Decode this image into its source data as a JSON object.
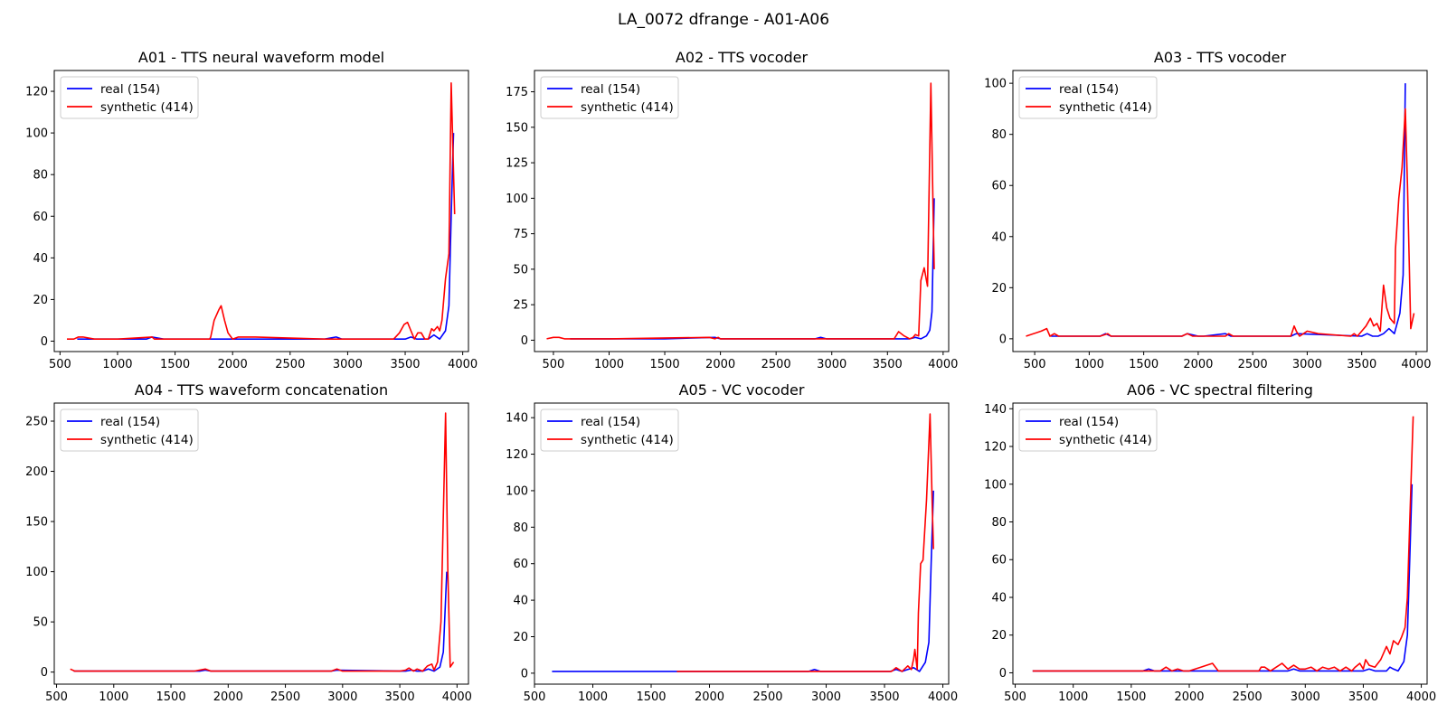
{
  "figure": {
    "suptitle": "LA_0072 dfrange - A01-A06",
    "colors": {
      "real": "#0000ff",
      "synthetic": "#ff0000"
    }
  },
  "chart_data": [
    {
      "type": "line",
      "title": "A01 - TTS neural waveform model",
      "xlim": [
        450,
        4050
      ],
      "ylim": [
        -5,
        130
      ],
      "xticks": [
        500,
        1000,
        1500,
        2000,
        2500,
        3000,
        3500,
        4000
      ],
      "yticks": [
        0,
        20,
        40,
        60,
        80,
        100,
        120
      ],
      "legend": "upper-left",
      "series": [
        {
          "name": "real (154)",
          "color": "#0000ff",
          "x": [
            650,
            1000,
            1250,
            1300,
            1400,
            2000,
            2800,
            2900,
            2950,
            3500,
            3550,
            3600,
            3650,
            3700,
            3750,
            3800,
            3850,
            3880,
            3900,
            3920
          ],
          "y": [
            1,
            1,
            1,
            2,
            1,
            1,
            1,
            2,
            1,
            1,
            2,
            1,
            1,
            1,
            3,
            1,
            5,
            17,
            60,
            100
          ]
        },
        {
          "name": "synthetic (414)",
          "color": "#ff0000",
          "x": [
            560,
            620,
            660,
            700,
            800,
            1000,
            1300,
            1320,
            1400,
            1700,
            1800,
            1810,
            1840,
            1880,
            1900,
            1930,
            1960,
            2000,
            2050,
            2200,
            2800,
            2900,
            3400,
            3450,
            3490,
            3520,
            3550,
            3580,
            3610,
            3640,
            3670,
            3700,
            3730,
            3750,
            3780,
            3800,
            3820,
            3850,
            3880,
            3900,
            3930
          ],
          "y": [
            1,
            1,
            2,
            2,
            1,
            1,
            2,
            1,
            1,
            1,
            1,
            2,
            10,
            15,
            17,
            10,
            4,
            1,
            2,
            2,
            1,
            1,
            1,
            4,
            8,
            9,
            5,
            1,
            4,
            4,
            1,
            1,
            6,
            5,
            7,
            5,
            10,
            30,
            42,
            124,
            61
          ]
        }
      ]
    },
    {
      "type": "line",
      "title": "A02 - TTS vocoder",
      "xlim": [
        330,
        4050
      ],
      "ylim": [
        -8,
        190
      ],
      "xticks": [
        500,
        1000,
        1500,
        2000,
        2500,
        3000,
        3500,
        4000
      ],
      "yticks": [
        0,
        25,
        50,
        75,
        100,
        125,
        150,
        175
      ],
      "legend": "upper-left",
      "series": [
        {
          "name": "real (154)",
          "color": "#0000ff",
          "x": [
            650,
            1000,
            1500,
            1950,
            2000,
            2050,
            2850,
            2900,
            2950,
            3500,
            3600,
            3700,
            3750,
            3800,
            3850,
            3880,
            3900,
            3920
          ],
          "y": [
            1,
            1,
            1,
            2,
            1,
            1,
            1,
            2,
            1,
            1,
            1,
            1,
            2,
            1,
            3,
            7,
            20,
            100
          ]
        },
        {
          "name": "synthetic (414)",
          "color": "#ff0000",
          "x": [
            440,
            500,
            550,
            600,
            650,
            700,
            800,
            1000,
            1900,
            1950,
            1980,
            2000,
            2050,
            2100,
            2800,
            2900,
            3500,
            3560,
            3600,
            3650,
            3700,
            3730,
            3750,
            3780,
            3800,
            3830,
            3860,
            3890,
            3910,
            3920
          ],
          "y": [
            1,
            2,
            2,
            1,
            1,
            1,
            1,
            1,
            2,
            1,
            2,
            1,
            1,
            1,
            1,
            1,
            1,
            1,
            6,
            3,
            1,
            2,
            4,
            3,
            42,
            51,
            38,
            181,
            90,
            50
          ]
        }
      ]
    },
    {
      "type": "line",
      "title": "A03 - TTS vocoder",
      "xlim": [
        300,
        4100
      ],
      "ylim": [
        -5,
        105
      ],
      "xticks": [
        500,
        1000,
        1500,
        2000,
        2500,
        3000,
        3500,
        4000
      ],
      "yticks": [
        0,
        20,
        40,
        60,
        80,
        100
      ],
      "legend": "upper-left",
      "series": [
        {
          "name": "real (154)",
          "color": "#0000ff",
          "x": [
            650,
            1100,
            1150,
            1200,
            1850,
            1900,
            2000,
            2050,
            2250,
            2300,
            2350,
            2850,
            2900,
            3500,
            3550,
            3600,
            3650,
            3700,
            3750,
            3800,
            3850,
            3880,
            3900
          ],
          "y": [
            1,
            1,
            2,
            1,
            1,
            2,
            1,
            1,
            2,
            1,
            1,
            1,
            2,
            1,
            2,
            1,
            1,
            2,
            4,
            2,
            10,
            25,
            100
          ]
        },
        {
          "name": "synthetic (414)",
          "color": "#ff0000",
          "x": [
            420,
            560,
            610,
            640,
            680,
            720,
            900,
            1100,
            1170,
            1200,
            1800,
            1850,
            1900,
            1950,
            2000,
            2050,
            2250,
            2280,
            2320,
            2800,
            2850,
            2880,
            2900,
            2930,
            3000,
            3100,
            3400,
            3430,
            3460,
            3500,
            3540,
            3580,
            3610,
            3640,
            3670,
            3700,
            3730,
            3760,
            3800,
            3810,
            3840,
            3870,
            3900,
            3920,
            3950,
            3980
          ],
          "y": [
            1,
            3,
            4,
            1,
            2,
            1,
            1,
            1,
            2,
            1,
            1,
            1,
            2,
            1,
            1,
            1,
            1,
            2,
            1,
            1,
            1,
            5,
            3,
            1,
            3,
            2,
            1,
            2,
            1,
            3,
            5,
            8,
            5,
            6,
            3,
            21,
            12,
            8,
            6,
            35,
            55,
            67,
            90,
            60,
            4,
            10
          ]
        }
      ]
    },
    {
      "type": "line",
      "title": "A04 - TTS waveform concatenation",
      "xlim": [
        480,
        4100
      ],
      "ylim": [
        -12,
        268
      ],
      "xticks": [
        500,
        1000,
        1500,
        2000,
        2500,
        3000,
        3500,
        4000
      ],
      "yticks": [
        0,
        50,
        100,
        150,
        200,
        250
      ],
      "legend": "upper-left",
      "series": [
        {
          "name": "real (154)",
          "color": "#0000ff",
          "x": [
            650,
            1000,
            1750,
            1800,
            1850,
            2900,
            2950,
            3500,
            3550,
            3600,
            3650,
            3700,
            3750,
            3800,
            3850,
            3880,
            3910
          ],
          "y": [
            1,
            1,
            1,
            2,
            1,
            1,
            2,
            1,
            1,
            2,
            1,
            1,
            3,
            1,
            5,
            20,
            100
          ]
        },
        {
          "name": "synthetic (414)",
          "color": "#ff0000",
          "x": [
            620,
            660,
            700,
            1000,
            1700,
            1800,
            1850,
            2800,
            2900,
            2950,
            3000,
            3500,
            3550,
            3580,
            3620,
            3650,
            3700,
            3740,
            3780,
            3800,
            3830,
            3860,
            3900,
            3920,
            3940,
            3970
          ],
          "y": [
            3,
            1,
            1,
            1,
            1,
            3,
            1,
            1,
            1,
            3,
            1,
            1,
            2,
            4,
            1,
            3,
            1,
            6,
            8,
            2,
            10,
            50,
            258,
            100,
            5,
            10
          ]
        }
      ]
    },
    {
      "type": "line",
      "title": "A05 - VC vocoder",
      "xlim": [
        500,
        4050
      ],
      "ylim": [
        -6,
        148
      ],
      "xticks": [
        500,
        1000,
        1500,
        2000,
        2500,
        3000,
        3500,
        4000
      ],
      "yticks": [
        0,
        20,
        40,
        60,
        80,
        100,
        120,
        140
      ],
      "legend": "upper-left",
      "series": [
        {
          "name": "real (154)",
          "color": "#0000ff",
          "x": [
            650,
            1500,
            2850,
            2900,
            2950,
            3500,
            3550,
            3600,
            3650,
            3700,
            3750,
            3800,
            3850,
            3880,
            3900,
            3920
          ],
          "y": [
            1,
            1,
            1,
            2,
            1,
            1,
            1,
            2,
            1,
            2,
            3,
            1,
            6,
            17,
            60,
            100
          ]
        },
        {
          "name": "synthetic (414)",
          "color": "#ff0000",
          "x": [
            1720,
            2800,
            2900,
            3500,
            3560,
            3600,
            3650,
            3700,
            3730,
            3750,
            3760,
            3780,
            3790,
            3810,
            3830,
            3860,
            3890,
            3910,
            3920
          ],
          "y": [
            1,
            1,
            1,
            1,
            1,
            3,
            1,
            4,
            2,
            8,
            13,
            2,
            33,
            60,
            62,
            95,
            142,
            90,
            68
          ]
        }
      ]
    },
    {
      "type": "line",
      "title": "A06 - VC spectral filtering",
      "xlim": [
        480,
        4050
      ],
      "ylim": [
        -6,
        143
      ],
      "xticks": [
        500,
        1000,
        1500,
        2000,
        2500,
        3000,
        3500,
        4000
      ],
      "yticks": [
        0,
        20,
        40,
        60,
        80,
        100,
        120,
        140
      ],
      "legend": "upper-left",
      "series": [
        {
          "name": "real (154)",
          "color": "#0000ff",
          "x": [
            650,
            1000,
            1600,
            1650,
            1700,
            2050,
            2100,
            2700,
            2850,
            2900,
            2950,
            3500,
            3550,
            3600,
            3650,
            3700,
            3730,
            3760,
            3800,
            3830,
            3850,
            3880,
            3900,
            3920
          ],
          "y": [
            1,
            1,
            1,
            2,
            1,
            1,
            1,
            1,
            1,
            2,
            1,
            1,
            2,
            1,
            1,
            1,
            3,
            2,
            1,
            4,
            6,
            20,
            60,
            100
          ]
        },
        {
          "name": "synthetic (414)",
          "color": "#ff0000",
          "x": [
            650,
            1000,
            1600,
            1650,
            1700,
            1750,
            1800,
            1850,
            1900,
            1950,
            2000,
            2100,
            2150,
            2200,
            2250,
            2600,
            2620,
            2650,
            2700,
            2750,
            2800,
            2850,
            2900,
            2950,
            3000,
            3050,
            3100,
            3150,
            3200,
            3250,
            3300,
            3350,
            3400,
            3430,
            3470,
            3500,
            3520,
            3550,
            3600,
            3650,
            3700,
            3730,
            3760,
            3800,
            3830,
            3860,
            3880,
            3900,
            3930
          ],
          "y": [
            1,
            1,
            1,
            1,
            1,
            1,
            3,
            1,
            2,
            1,
            1,
            3,
            4,
            5,
            1,
            1,
            3,
            3,
            1,
            3,
            5,
            2,
            4,
            2,
            2,
            3,
            1,
            3,
            2,
            3,
            1,
            3,
            1,
            3,
            5,
            2,
            7,
            4,
            3,
            7,
            14,
            10,
            17,
            15,
            19,
            24,
            40,
            80,
            136
          ]
        }
      ]
    }
  ]
}
